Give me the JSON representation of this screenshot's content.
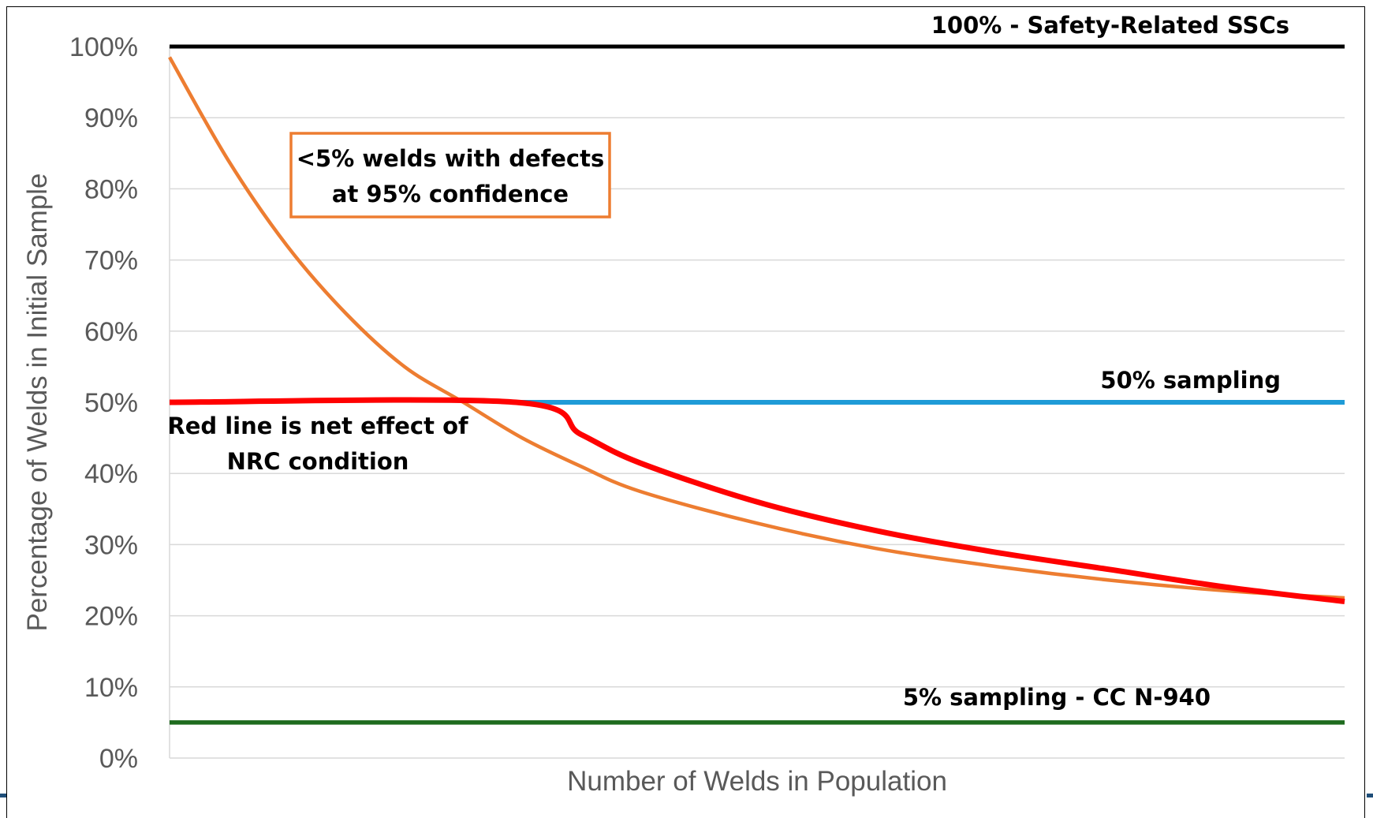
{
  "chart_data": {
    "type": "line",
    "title": "",
    "xlabel": "Number of Welds in Population",
    "ylabel": "Percentage of Welds in Initial Sample",
    "ylim": [
      0,
      100
    ],
    "yticks": [
      "0%",
      "10%",
      "20%",
      "30%",
      "40%",
      "50%",
      "60%",
      "70%",
      "80%",
      "90%",
      "100%"
    ],
    "xlim": [
      0,
      1
    ],
    "grid": true,
    "series": [
      {
        "name": "",
        "color": "#ED7D31",
        "x": [
          0.0,
          0.05,
          0.1,
          0.15,
          0.2,
          0.25,
          0.3,
          0.35,
          0.4,
          0.5,
          0.6,
          0.7,
          0.8,
          0.9,
          1.0
        ],
        "y": [
          98.5,
          84,
          72,
          62.5,
          55,
          50,
          45,
          41,
          37.5,
          33,
          29.5,
          27,
          25,
          23.5,
          22.5
        ]
      },
      {
        "name": "",
        "color": "#000000",
        "x": [
          0,
          1
        ],
        "y": [
          100,
          100
        ]
      },
      {
        "name": "",
        "color": "#1F9BD7",
        "x": [
          0.295,
          1
        ],
        "y": [
          50,
          50
        ]
      },
      {
        "name": "",
        "color": "#1E6B1E",
        "x": [
          0,
          1
        ],
        "y": [
          5,
          5
        ]
      },
      {
        "name": "",
        "color": "#FF0000",
        "x": [
          0.0,
          0.295,
          0.35,
          0.4,
          0.5,
          0.6,
          0.7,
          0.8,
          0.9,
          1.0
        ],
        "y": [
          50,
          50,
          45.5,
          41.5,
          36,
          32,
          29,
          26.5,
          24,
          22
        ]
      }
    ],
    "annotations": {
      "safety": "100% - Safety-Related SSCs",
      "fifty": "50% sampling",
      "five": "5% sampling - CC N-940",
      "box_line1": "<5% welds with defects",
      "box_line2": "at 95% confidence",
      "red_line1": "Red line is net effect of",
      "red_line2": "NRC condition"
    }
  }
}
